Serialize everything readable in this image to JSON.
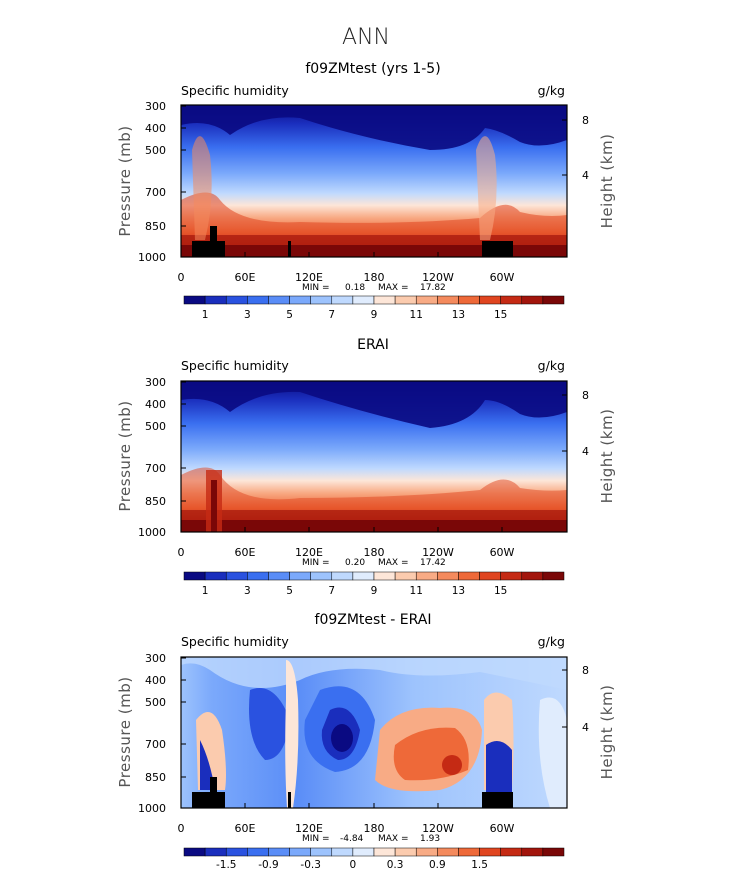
{
  "figure_title": "ANN",
  "chart_data": [
    {
      "type": "heatmap",
      "title": "f09ZMtest (yrs 1-5)",
      "variable": "Specific humidity",
      "units": "g/kg",
      "ylabel": "Pressure (mb)",
      "ylabel_right": "Height (km)",
      "xticks": [
        "0",
        "60E",
        "120E",
        "180",
        "120W",
        "60W"
      ],
      "xtick_values": [
        0,
        60,
        120,
        180,
        240,
        300
      ],
      "xlim": [
        0,
        360
      ],
      "yticks": [
        "300",
        "400",
        "500",
        "700",
        "850",
        "1000"
      ],
      "ytick_values": [
        300,
        400,
        500,
        700,
        850,
        1000
      ],
      "ylim": [
        1000,
        300
      ],
      "height_ticks": [
        "8",
        "4"
      ],
      "height_values": [
        8,
        4
      ],
      "min_label": "MIN =",
      "min_value": "0.18",
      "max_label": "MAX =",
      "max_value": "17.82",
      "colorbar": {
        "levels": 18,
        "labels": [
          "1",
          "3",
          "5",
          "7",
          "9",
          "11",
          "13",
          "15"
        ],
        "colors": [
          "#0a0a82",
          "#1a2ebd",
          "#2a52e0",
          "#3a6ff0",
          "#5a8df7",
          "#7ba9fb",
          "#9dc3fd",
          "#bfd9fe",
          "#e0ecfd",
          "#fde6d8",
          "#fbcbae",
          "#f8ab85",
          "#f48a5d",
          "#ee6939",
          "#e04520",
          "#c52a14",
          "#a2150c",
          "#7a0707"
        ]
      }
    },
    {
      "type": "heatmap",
      "title": "ERAI",
      "variable": "Specific humidity",
      "units": "g/kg",
      "ylabel": "Pressure (mb)",
      "ylabel_right": "Height (km)",
      "xticks": [
        "0",
        "60E",
        "120E",
        "180",
        "120W",
        "60W"
      ],
      "xtick_values": [
        0,
        60,
        120,
        180,
        240,
        300
      ],
      "xlim": [
        0,
        360
      ],
      "yticks": [
        "300",
        "400",
        "500",
        "700",
        "850",
        "1000"
      ],
      "ytick_values": [
        300,
        400,
        500,
        700,
        850,
        1000
      ],
      "ylim": [
        1000,
        300
      ],
      "height_ticks": [
        "8",
        "4"
      ],
      "height_values": [
        8,
        4
      ],
      "min_label": "MIN =",
      "min_value": "0.20",
      "max_label": "MAX =",
      "max_value": "17.42",
      "colorbar": {
        "levels": 18,
        "labels": [
          "1",
          "3",
          "5",
          "7",
          "9",
          "11",
          "13",
          "15"
        ],
        "colors": [
          "#0a0a82",
          "#1a2ebd",
          "#2a52e0",
          "#3a6ff0",
          "#5a8df7",
          "#7ba9fb",
          "#9dc3fd",
          "#bfd9fe",
          "#e0ecfd",
          "#fde6d8",
          "#fbcbae",
          "#f8ab85",
          "#f48a5d",
          "#ee6939",
          "#e04520",
          "#c52a14",
          "#a2150c",
          "#7a0707"
        ]
      }
    },
    {
      "type": "heatmap",
      "title": "f09ZMtest - ERAI",
      "variable": "Specific humidity",
      "units": "g/kg",
      "ylabel": "Pressure (mb)",
      "ylabel_right": "Height (km)",
      "xticks": [
        "0",
        "60E",
        "120E",
        "180",
        "120W",
        "60W"
      ],
      "xtick_values": [
        0,
        60,
        120,
        180,
        240,
        300
      ],
      "xlim": [
        0,
        360
      ],
      "yticks": [
        "300",
        "400",
        "500",
        "700",
        "850",
        "1000"
      ],
      "ytick_values": [
        300,
        400,
        500,
        700,
        850,
        1000
      ],
      "ylim": [
        1000,
        300
      ],
      "height_ticks": [
        "8",
        "4"
      ],
      "height_values": [
        8,
        4
      ],
      "min_label": "MIN =",
      "min_value": "-4.84",
      "max_label": "MAX =",
      "max_value": "1.93",
      "colorbar": {
        "levels": 18,
        "labels": [
          "-1.5",
          "-0.9",
          "-0.3",
          "0",
          "0.3",
          "0.9",
          "1.5"
        ],
        "label_boundaries": [
          2,
          4,
          6,
          8,
          10,
          12,
          14
        ],
        "colors": [
          "#0a0a82",
          "#1a2ebd",
          "#2a52e0",
          "#3a6ff0",
          "#5a8df7",
          "#7ba9fb",
          "#9dc3fd",
          "#bfd9fe",
          "#e0ecfd",
          "#fde6d8",
          "#fbcbae",
          "#f8ab85",
          "#f48a5d",
          "#ee6939",
          "#e04520",
          "#c52a14",
          "#a2150c",
          "#7a0707"
        ]
      }
    }
  ]
}
